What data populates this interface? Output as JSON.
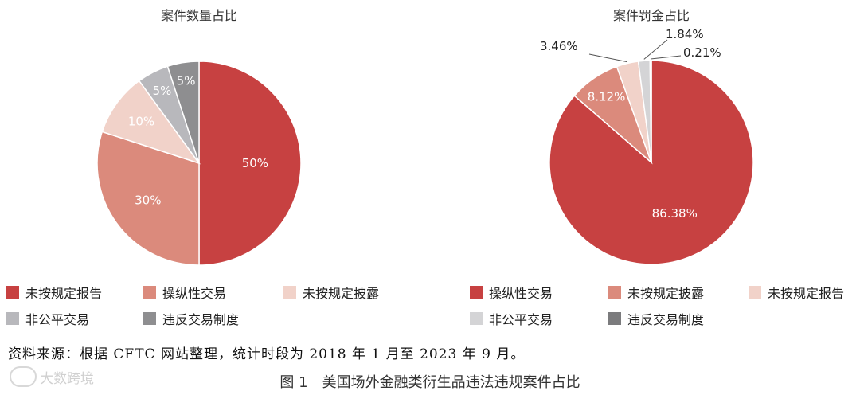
{
  "chart_data": [
    {
      "type": "pie",
      "title": "案件数量占比",
      "slices": [
        {
          "label": "未按规定报告",
          "value": 50,
          "display": "50%",
          "color": "#c74141"
        },
        {
          "label": "操纵性交易",
          "value": 30,
          "display": "30%",
          "color": "#db8a7c"
        },
        {
          "label": "未按规定披露",
          "value": 10,
          "display": "10%",
          "color": "#f1d2c9"
        },
        {
          "label": "非公平交易",
          "value": 5,
          "display": "5%",
          "color": "#b8b8bc"
        },
        {
          "label": "违反交易制度",
          "value": 5,
          "display": "5%",
          "color": "#8e8e90"
        }
      ]
    },
    {
      "type": "pie",
      "title": "案件罚金占比",
      "slices": [
        {
          "label": "操纵性交易",
          "value": 86.38,
          "display": "86.38%",
          "color": "#c74141"
        },
        {
          "label": "未按规定披露",
          "value": 8.12,
          "display": "8.12%",
          "color": "#db8a7c"
        },
        {
          "label": "未按规定报告",
          "value": 3.46,
          "display": "3.46%",
          "color": "#f1d2c9"
        },
        {
          "label": "非公平交易",
          "value": 1.84,
          "display": "1.84%",
          "color": "#d4d4d6"
        },
        {
          "label": "违反交易制度",
          "value": 0.21,
          "display": "0.21%",
          "color": "#7b7b7d"
        }
      ]
    }
  ],
  "source_note": "资料来源：根据 CFTC 网站整理，统计时段为 2018 年 1 月至 2023 年 9 月。",
  "caption": "图 1　美国场外金融类衍生品违法违规案件占比",
  "watermark": "大数跨境"
}
